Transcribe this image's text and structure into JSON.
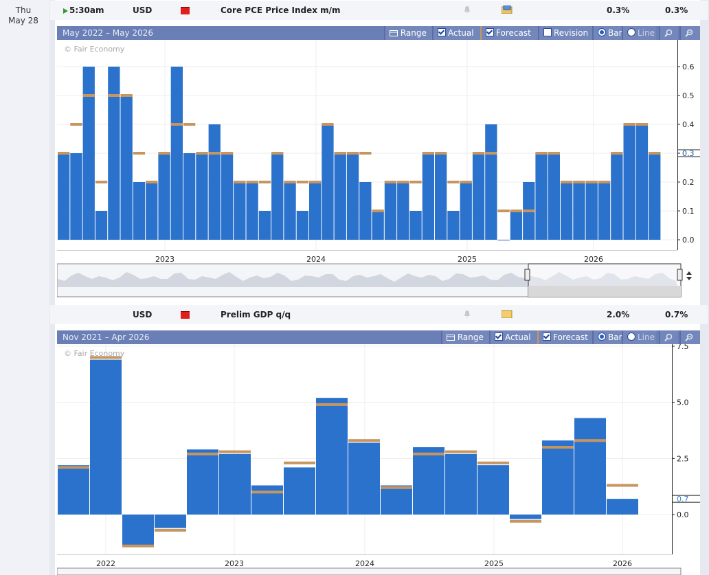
{
  "day": {
    "weekday": "Thu",
    "date": "May 28"
  },
  "rows": [
    {
      "time": "5:30am",
      "currency": "USD",
      "event": "Core PCE Price Index m/m",
      "actual": "0.3%",
      "forecast": "0.3%"
    },
    {
      "time": "",
      "currency": "USD",
      "event": "Prelim GDP q/q",
      "actual": "2.0%",
      "forecast": "0.7%"
    }
  ],
  "toolbar": {
    "range": "Range",
    "actual": "Actual",
    "forecast": "Forecast",
    "revision": "Revision",
    "bar": "Bar",
    "line": "Line"
  },
  "colors": {
    "bar": "#2b72cd",
    "forecast": "#c79660",
    "header": "#6a7fb5"
  },
  "chart_data": [
    {
      "type": "bar",
      "title": "May 2022 – May 2026",
      "watermark": "© Fair Economy",
      "ylim": [
        0,
        0.65
      ],
      "yticks": [
        "0.6",
        "0.5",
        "0.4",
        "0.3",
        "0.2",
        "0.1",
        "0.0"
      ],
      "xticks": [
        "2023",
        "2024",
        "2025",
        "2026"
      ],
      "last_value_label": "0.3",
      "series": [
        {
          "name": "Actual",
          "values": [
            0.3,
            0.3,
            0.6,
            0.1,
            0.6,
            0.5,
            0.2,
            0.2,
            0.3,
            0.6,
            0.3,
            0.3,
            0.4,
            0.3,
            0.2,
            0.2,
            0.1,
            0.3,
            0.2,
            0.1,
            0.2,
            0.4,
            0.3,
            0.3,
            0.2,
            0.1,
            0.2,
            0.2,
            0.1,
            0.3,
            0.3,
            0.1,
            0.2,
            0.3,
            0.4,
            0.0,
            0.1,
            0.2,
            0.3,
            0.3,
            0.2,
            0.2,
            0.2,
            0.2,
            0.3,
            0.4,
            0.4,
            0.3
          ]
        },
        {
          "name": "Forecast",
          "values": [
            0.3,
            0.4,
            0.5,
            0.2,
            0.5,
            0.5,
            0.3,
            0.2,
            0.3,
            0.4,
            0.4,
            0.3,
            0.3,
            0.3,
            0.2,
            0.2,
            0.2,
            0.3,
            0.2,
            0.2,
            0.2,
            0.4,
            0.3,
            0.3,
            0.3,
            0.1,
            0.2,
            0.2,
            0.2,
            0.3,
            0.3,
            0.2,
            0.2,
            0.3,
            0.3,
            0.1,
            0.1,
            0.1,
            0.3,
            0.3,
            0.2,
            0.2,
            0.2,
            0.2,
            0.3,
            0.4,
            0.4,
            0.3
          ]
        }
      ]
    },
    {
      "type": "bar",
      "title": "Nov 2021 – Apr 2026",
      "watermark": "© Fair Economy",
      "ylim": [
        -3,
        7.5
      ],
      "yticks": [
        "7.5",
        "5.0",
        "2.5",
        "0.0"
      ],
      "xticks": [
        "2022",
        "2023",
        "2024",
        "2025",
        "2026"
      ],
      "last_value_label": "0.7",
      "series": [
        {
          "name": "Actual",
          "values": [
            2.2,
            6.9,
            -1.4,
            -0.6,
            2.9,
            2.7,
            1.3,
            2.1,
            5.2,
            3.2,
            1.3,
            3.0,
            2.7,
            2.2,
            -0.2,
            3.3,
            4.3,
            0.7
          ]
        },
        {
          "name": "Forecast",
          "values": [
            2.1,
            7.0,
            -1.4,
            -0.7,
            2.7,
            2.8,
            1.0,
            2.3,
            4.9,
            3.3,
            1.2,
            2.7,
            2.8,
            2.3,
            -0.3,
            3.0,
            3.3,
            1.3
          ]
        }
      ]
    }
  ]
}
